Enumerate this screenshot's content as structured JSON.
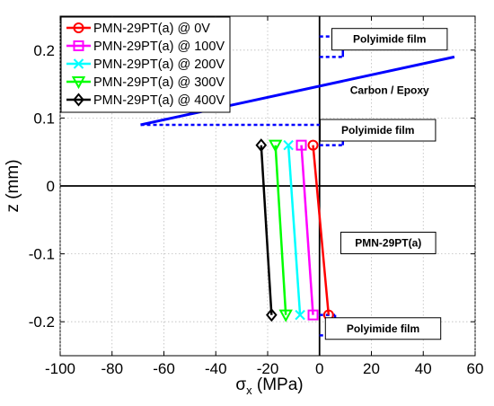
{
  "chart_data": {
    "type": "line",
    "xlabel_base": "σ",
    "xlabel_sub": "x",
    "xlabel_rest": " (MPa)",
    "ylabel": "z (mm)",
    "xlim": [
      -100,
      60
    ],
    "ylim": [
      -0.25,
      0.25
    ],
    "xticks": [
      -100,
      -80,
      -60,
      -40,
      -20,
      0,
      20,
      40,
      60
    ],
    "yticks": [
      -0.2,
      -0.1,
      0,
      0.1,
      0.2
    ],
    "xtick_labels": [
      "-100",
      "-80",
      "-60",
      "-40",
      "-20",
      "0",
      "20",
      "40",
      "60"
    ],
    "ytick_labels": [
      "-0.2",
      "-0.1",
      "0",
      "0.1",
      "0.2"
    ],
    "grid": true,
    "legend_position": "top-left",
    "series": [
      {
        "name": "PMN-29PT(a) @ 0V",
        "color": "#ff0000",
        "marker": "circle",
        "x": [
          -2.5,
          3.5
        ],
        "y": [
          0.06,
          -0.19
        ]
      },
      {
        "name": "PMN-29PT(a) @ 100V",
        "color": "#ff00ff",
        "marker": "square",
        "x": [
          -7,
          -2.5
        ],
        "y": [
          0.06,
          -0.19
        ]
      },
      {
        "name": "PMN-29PT(a) @ 200V",
        "color": "#00ffff",
        "marker": "x",
        "x": [
          -12,
          -7.5
        ],
        "y": [
          0.06,
          -0.19
        ]
      },
      {
        "name": "PMN-29PT(a) @ 300V",
        "color": "#00ff00",
        "marker": "triangle-down",
        "x": [
          -17,
          -13
        ],
        "y": [
          0.06,
          -0.19
        ]
      },
      {
        "name": "PMN-29PT(a) @ 400V",
        "color": "#000000",
        "marker": "diamond",
        "x": [
          -22.5,
          -18.5
        ],
        "y": [
          0.06,
          -0.19
        ]
      }
    ],
    "carbon_line": {
      "color": "#0000ff",
      "x": [
        -69,
        52
      ],
      "y": [
        0.09,
        0.19
      ]
    },
    "ref_lines": {
      "vertical_x": 0,
      "horizontal_y": 0
    },
    "layer_brackets": [
      {
        "color": "#0000ff",
        "bracket_x": 9,
        "y_top": 0.22,
        "y_bottom": 0.19
      },
      {
        "color": "#0000ff",
        "bracket_x": 9,
        "y_top": 0.09,
        "y_bottom": 0.06
      },
      {
        "color": "#0000ff",
        "bracket_x": 6,
        "y_top": -0.19,
        "y_bottom": -0.22
      }
    ],
    "annotations": [
      {
        "text": "Polyimide film",
        "boxed": true,
        "x": 27,
        "y": 0.216
      },
      {
        "text": "Carbon / Epoxy",
        "boxed": false,
        "x": 27,
        "y": 0.141
      },
      {
        "text": "Polyimide film",
        "boxed": true,
        "x": 22.5,
        "y": 0.082
      },
      {
        "text": "PMN-29PT(a)",
        "boxed": true,
        "x": 26.5,
        "y": -0.084
      },
      {
        "text": "Polyimide film",
        "boxed": true,
        "x": 24.5,
        "y": -0.21
      }
    ]
  }
}
